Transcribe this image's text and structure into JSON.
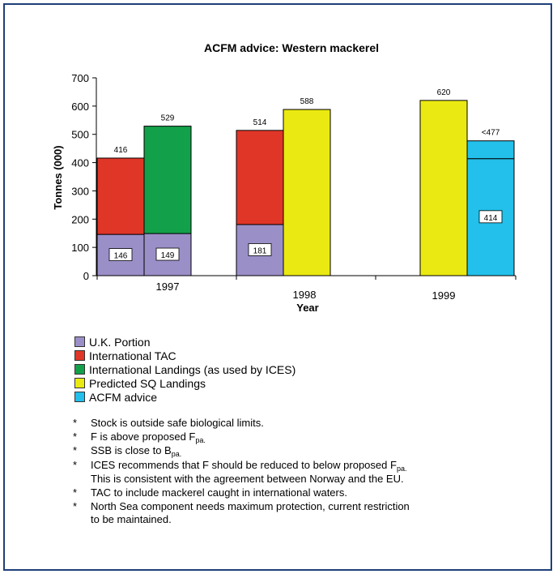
{
  "chart_data": {
    "type": "bar",
    "title": "ACFM advice: Western mackerel",
    "xlabel": "Year",
    "ylabel": "Tonnes (000)",
    "ylim": [
      0,
      700
    ],
    "yticks": [
      0,
      100,
      200,
      300,
      400,
      500,
      600,
      700
    ],
    "groups": [
      {
        "year": "1997",
        "bars": [
          {
            "segments": [
              {
                "series": "U.K. Portion",
                "value": 146,
                "label": "146"
              },
              {
                "series": "International TAC",
                "value": 270
              }
            ],
            "total": 416,
            "total_label": "416"
          },
          {
            "segments": [
              {
                "series": "U.K. Portion",
                "value": 149,
                "label": "149"
              },
              {
                "series": "International Landings (as used by ICES)",
                "value": 380
              }
            ],
            "total": 529,
            "total_label": "529"
          }
        ]
      },
      {
        "year": "1998",
        "bars": [
          {
            "segments": [
              {
                "series": "U.K. Portion",
                "value": 181,
                "label": "181"
              },
              {
                "series": "International TAC",
                "value": 333
              }
            ],
            "total": 514,
            "total_label": "514"
          },
          {
            "segments": [
              {
                "series": "Predicted SQ Landings",
                "value": 588
              }
            ],
            "total": 588,
            "total_label": "588"
          }
        ]
      },
      {
        "year": "1999",
        "bars": [
          {
            "segments": [
              {
                "series": "Predicted SQ Landings",
                "value": 620
              }
            ],
            "total": 620,
            "total_label": "620"
          },
          {
            "segments": [
              {
                "series": "ACFM advice",
                "value": 414,
                "label": "414"
              },
              {
                "series": "ACFM advice",
                "value": 63
              }
            ],
            "total": 477,
            "total_label": "<477"
          }
        ]
      }
    ],
    "series": [
      {
        "name": "U.K. Portion",
        "color": "#9b8fc8"
      },
      {
        "name": "International TAC",
        "color": "#e03628"
      },
      {
        "name": "International Landings (as used by ICES)",
        "color": "#13a04a"
      },
      {
        "name": "Predicted SQ Landings",
        "color": "#eaea12"
      },
      {
        "name": "ACFM advice",
        "color": "#22c0ea"
      }
    ]
  },
  "notes": [
    {
      "parts": [
        {
          "t": "Stock is outside safe biological limits."
        }
      ]
    },
    {
      "parts": [
        {
          "t": "F is above proposed F"
        },
        {
          "t": "pa.",
          "sub": true
        }
      ]
    },
    {
      "parts": [
        {
          "t": "SSB is close to B"
        },
        {
          "t": "pa.",
          "sub": true
        }
      ]
    },
    {
      "parts": [
        {
          "t": "ICES recommends that F should be reduced to below proposed F"
        },
        {
          "t": "pa.",
          "sub": true
        },
        {
          "t": "\nThis is consistent with the agreement between Norway and the EU."
        }
      ]
    },
    {
      "parts": [
        {
          "t": "TAC to include mackerel caught in international waters."
        }
      ]
    },
    {
      "parts": [
        {
          "t": "North Sea component needs maximum protection, current restriction\nto be maintained."
        }
      ]
    }
  ],
  "bullet": "*"
}
